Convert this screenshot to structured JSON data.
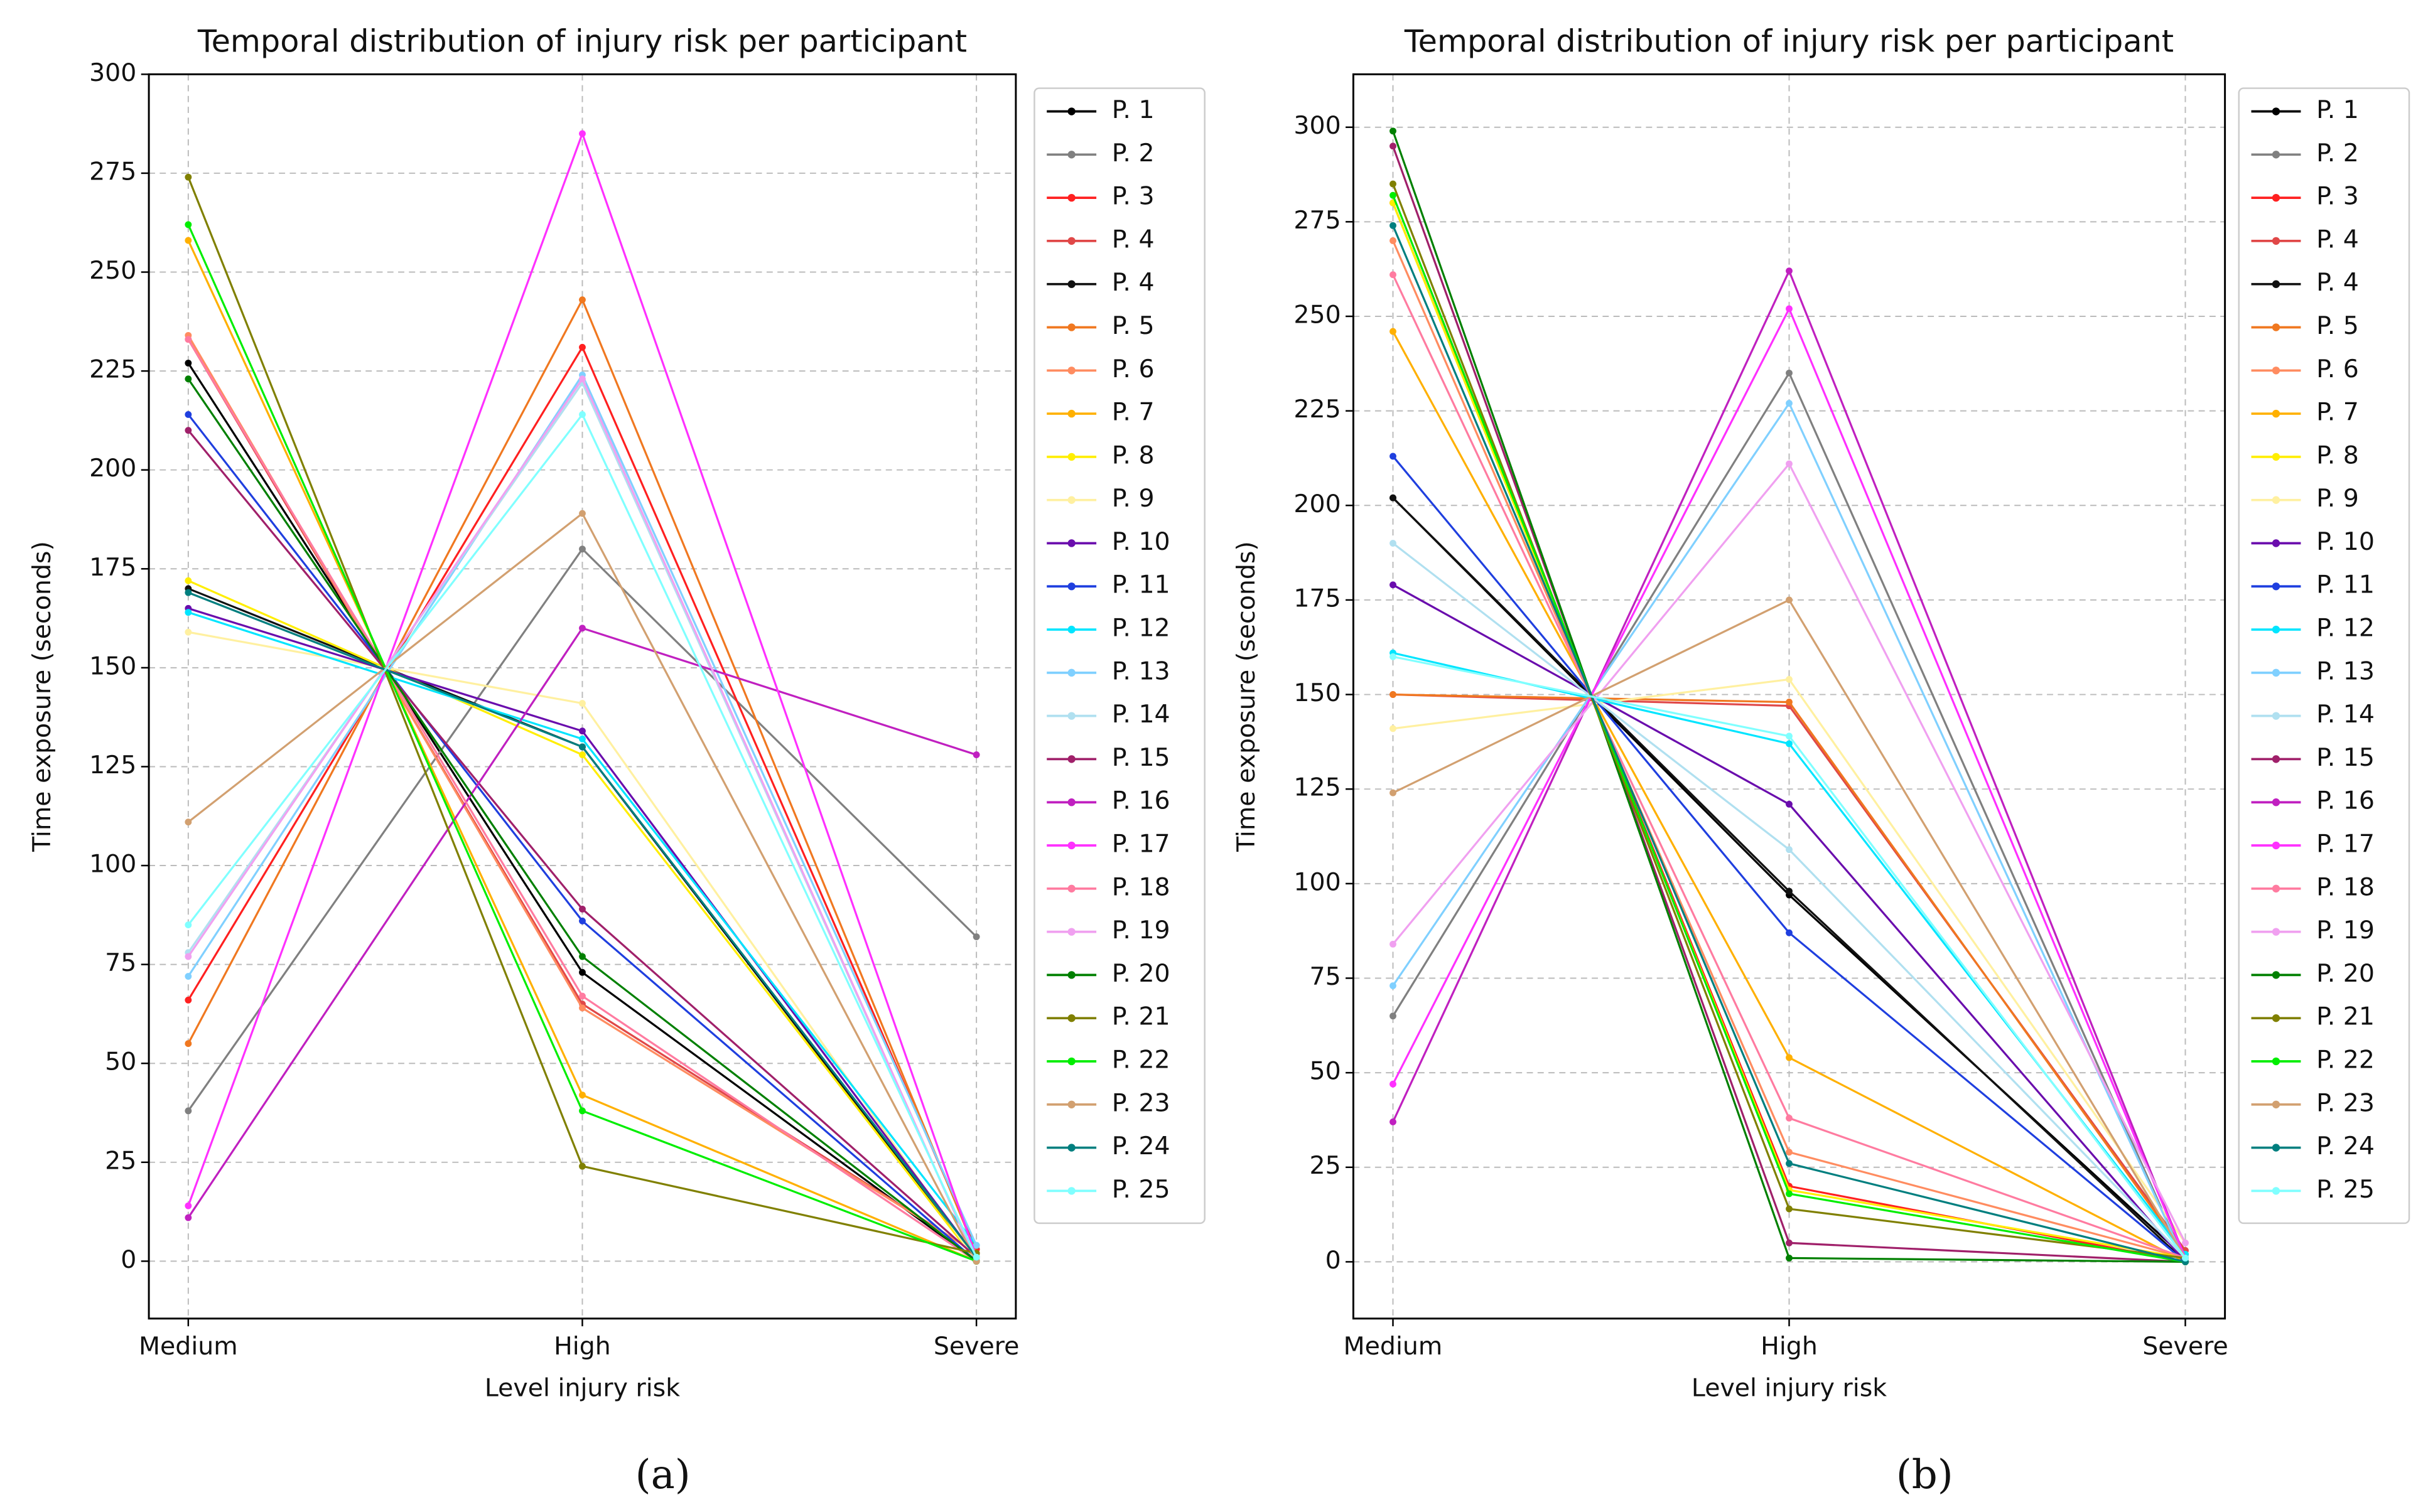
{
  "chart_data": [
    {
      "type": "line",
      "title": "Temporal distribution of injury risk per participant",
      "x_label": "Level injury risk",
      "y_label": "Time exposure (seconds)",
      "panel_label": "(a)",
      "categories": [
        "Medium",
        "High",
        "Severe"
      ],
      "ylim": [
        -14.5,
        300
      ],
      "yticks": [
        0,
        25,
        50,
        75,
        100,
        125,
        150,
        175,
        200,
        225,
        250,
        275,
        300
      ],
      "grid": true,
      "series": [
        {
          "name": "P. 1",
          "color": "#000000",
          "values": [
            227,
            73,
            0
          ]
        },
        {
          "name": "P. 2",
          "color": "#808080",
          "values": [
            38,
            180,
            82
          ]
        },
        {
          "name": "P. 3",
          "color": "#ff2020",
          "values": [
            66,
            231,
            3
          ]
        },
        {
          "name": "P. 4",
          "color": "#e04848",
          "values": [
            233,
            65,
            2
          ]
        },
        {
          "name": "P. 4",
          "color": "#111111",
          "values": [
            170,
            130,
            0
          ]
        },
        {
          "name": "P. 5",
          "color": "#f07820",
          "values": [
            55,
            243,
            2
          ]
        },
        {
          "name": "P. 6",
          "color": "#ff8c60",
          "values": [
            234,
            64,
            2
          ]
        },
        {
          "name": "P. 7",
          "color": "#ffb000",
          "values": [
            258,
            42,
            0
          ]
        },
        {
          "name": "P. 8",
          "color": "#ffee00",
          "values": [
            172,
            128,
            0
          ]
        },
        {
          "name": "P. 9",
          "color": "#fff0a0",
          "values": [
            159,
            141,
            0
          ]
        },
        {
          "name": "P. 10",
          "color": "#6a0dad",
          "values": [
            165,
            134,
            1
          ]
        },
        {
          "name": "P. 11",
          "color": "#1f3fdf",
          "values": [
            214,
            86,
            0
          ]
        },
        {
          "name": "P. 12",
          "color": "#00e5ff",
          "values": [
            164,
            132,
            4
          ]
        },
        {
          "name": "P. 13",
          "color": "#80d0ff",
          "values": [
            72,
            224,
            4
          ]
        },
        {
          "name": "P. 14",
          "color": "#b0e0f0",
          "values": [
            78,
            222,
            0
          ]
        },
        {
          "name": "P. 15",
          "color": "#a0206a",
          "values": [
            210,
            89,
            1
          ]
        },
        {
          "name": "P. 16",
          "color": "#c020c0",
          "values": [
            11,
            160,
            128
          ]
        },
        {
          "name": "P. 17",
          "color": "#ff30ff",
          "values": [
            14,
            285,
            1
          ]
        },
        {
          "name": "P. 18",
          "color": "#ff7ba0",
          "values": [
            233,
            67,
            0
          ]
        },
        {
          "name": "P. 19",
          "color": "#f0a0f0",
          "values": [
            77,
            223,
            0
          ]
        },
        {
          "name": "P. 20",
          "color": "#008000",
          "values": [
            223,
            77,
            0
          ]
        },
        {
          "name": "P. 21",
          "color": "#808000",
          "values": [
            274,
            24,
            2
          ]
        },
        {
          "name": "P. 22",
          "color": "#00ee00",
          "values": [
            262,
            38,
            0
          ]
        },
        {
          "name": "P. 23",
          "color": "#d2a070",
          "values": [
            111,
            189,
            0
          ]
        },
        {
          "name": "P. 24",
          "color": "#007f7f",
          "values": [
            169,
            130,
            1
          ]
        },
        {
          "name": "P. 25",
          "color": "#80ffff",
          "values": [
            85,
            214,
            1
          ]
        }
      ]
    },
    {
      "type": "line",
      "title": "Temporal distribution of injury risk per participant",
      "x_label": "Level injury risk",
      "y_label": "Time exposure (seconds)",
      "panel_label": "(b)",
      "categories": [
        "Medium",
        "High",
        "Severe"
      ],
      "ylim": [
        -15,
        314
      ],
      "yticks": [
        0,
        25,
        50,
        75,
        100,
        125,
        150,
        175,
        200,
        225,
        250,
        275,
        300
      ],
      "grid": true,
      "series": [
        {
          "name": "P. 1",
          "color": "#000000",
          "values": [
            202,
            97,
            1
          ]
        },
        {
          "name": "P. 2",
          "color": "#808080",
          "values": [
            65,
            235,
            0
          ]
        },
        {
          "name": "P. 3",
          "color": "#ff2020",
          "values": [
            280,
            20,
            0
          ]
        },
        {
          "name": "P. 4",
          "color": "#e04848",
          "values": [
            150,
            147,
            3
          ]
        },
        {
          "name": "P. 4",
          "color": "#111111",
          "values": [
            202,
            98,
            0
          ]
        },
        {
          "name": "P. 5",
          "color": "#f07820",
          "values": [
            150,
            148,
            2
          ]
        },
        {
          "name": "P. 6",
          "color": "#ff8c60",
          "values": [
            270,
            29,
            1
          ]
        },
        {
          "name": "P. 7",
          "color": "#ffb000",
          "values": [
            246,
            54,
            0
          ]
        },
        {
          "name": "P. 8",
          "color": "#ffee00",
          "values": [
            280,
            19,
            1
          ]
        },
        {
          "name": "P. 9",
          "color": "#fff0a0",
          "values": [
            141,
            154,
            5
          ]
        },
        {
          "name": "P. 10",
          "color": "#6a0dad",
          "values": [
            179,
            121,
            0
          ]
        },
        {
          "name": "P. 11",
          "color": "#1f3fdf",
          "values": [
            213,
            87,
            0
          ]
        },
        {
          "name": "P. 12",
          "color": "#00e5ff",
          "values": [
            161,
            137,
            2
          ]
        },
        {
          "name": "P. 13",
          "color": "#80d0ff",
          "values": [
            73,
            227,
            0
          ]
        },
        {
          "name": "P. 14",
          "color": "#b0e0f0",
          "values": [
            190,
            109,
            1
          ]
        },
        {
          "name": "P. 15",
          "color": "#a0206a",
          "values": [
            295,
            5,
            0
          ]
        },
        {
          "name": "P. 16",
          "color": "#c020c0",
          "values": [
            37,
            262,
            1
          ]
        },
        {
          "name": "P. 17",
          "color": "#ff30ff",
          "values": [
            47,
            252,
            1
          ]
        },
        {
          "name": "P. 18",
          "color": "#ff7ba0",
          "values": [
            261,
            38,
            1
          ]
        },
        {
          "name": "P. 19",
          "color": "#f0a0f0",
          "values": [
            84,
            211,
            5
          ]
        },
        {
          "name": "P. 20",
          "color": "#008000",
          "values": [
            299,
            1,
            0
          ]
        },
        {
          "name": "P. 21",
          "color": "#808000",
          "values": [
            285,
            14,
            1
          ]
        },
        {
          "name": "P. 22",
          "color": "#00ee00",
          "values": [
            282,
            18,
            0
          ]
        },
        {
          "name": "P. 23",
          "color": "#d2a070",
          "values": [
            124,
            175,
            1
          ]
        },
        {
          "name": "P. 24",
          "color": "#007f7f",
          "values": [
            274,
            26,
            0
          ]
        },
        {
          "name": "P. 25",
          "color": "#80ffff",
          "values": [
            160,
            139,
            1
          ]
        }
      ]
    }
  ]
}
